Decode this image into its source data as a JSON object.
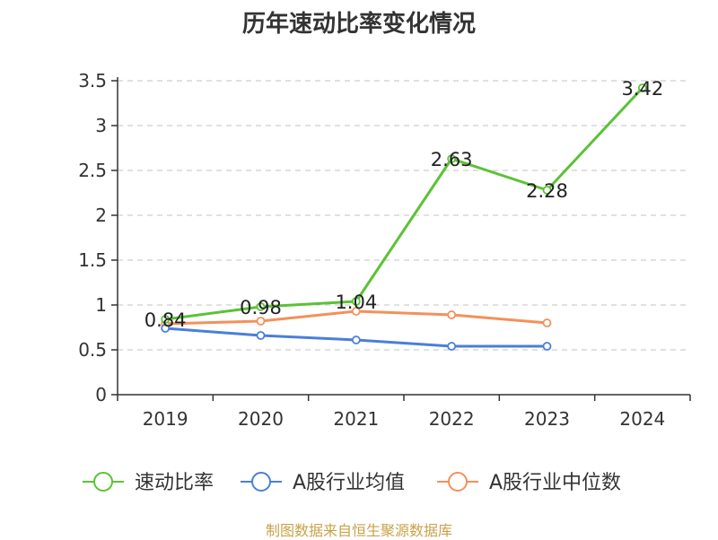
{
  "chart_data": {
    "type": "line",
    "title": "历年速动比率变化情况",
    "categories": [
      "2019",
      "2020",
      "2021",
      "2022",
      "2023",
      "2024"
    ],
    "ylim": [
      0,
      3.5
    ],
    "yticks": [
      "0",
      "0.5",
      "1",
      "1.5",
      "2",
      "2.5",
      "3",
      "3.5"
    ],
    "grid": true,
    "legend_position": "bottom",
    "series": [
      {
        "name": "速动比率",
        "color": "#5bc236",
        "values": [
          0.84,
          0.98,
          1.04,
          2.63,
          2.28,
          3.42
        ],
        "labels": [
          "0.84",
          "0.98",
          "1.04",
          "2.63",
          "2.28",
          "3.42"
        ],
        "show_labels": true
      },
      {
        "name": "A股行业均值",
        "color": "#4a7fdb",
        "values": [
          0.74,
          0.66,
          0.61,
          0.54,
          0.54,
          null
        ],
        "show_labels": false
      },
      {
        "name": "A股行业中位数",
        "color": "#f5905a",
        "values": [
          0.79,
          0.82,
          0.93,
          0.89,
          0.8,
          null
        ],
        "show_labels": false
      }
    ],
    "source": "制图数据来自恒生聚源数据库"
  }
}
